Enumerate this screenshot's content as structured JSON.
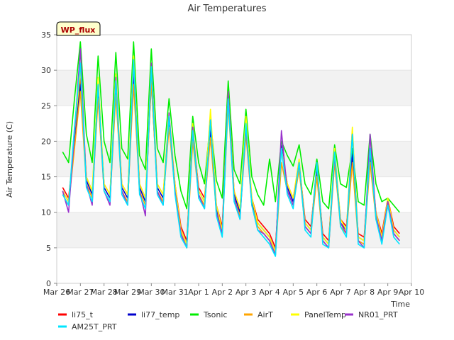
{
  "chart_data": {
    "type": "line",
    "title": "Air Temperatures",
    "xlabel": "Time",
    "ylabel": "Air Temperature (C)",
    "badge": "WP_flux",
    "ylim": [
      0,
      35
    ],
    "yticks": [
      0,
      5,
      10,
      15,
      20,
      25,
      30,
      35
    ],
    "xlim": [
      "Mar 26",
      "Apr 10"
    ],
    "xtick_labels": [
      "Mar 26",
      "Mar 27",
      "Mar 28",
      "Mar 29",
      "Mar 30",
      "Mar 31",
      "Apr 1",
      "Apr 2",
      "Apr 3",
      "Apr 4",
      "Apr 5",
      "Apr 6",
      "Apr 7",
      "Apr 8",
      "Apr 9",
      "Apr 10"
    ],
    "grid": "horizontal bands",
    "legend_position": "bottom",
    "x": [
      "Mar 26 06:00",
      "Mar 26 12:00",
      "Mar 26 18:00",
      "Mar 27 00:00",
      "Mar 27 06:00",
      "Mar 27 12:00",
      "Mar 27 18:00",
      "Mar 28 00:00",
      "Mar 28 06:00",
      "Mar 28 12:00",
      "Mar 28 18:00",
      "Mar 29 00:00",
      "Mar 29 06:00",
      "Mar 29 12:00",
      "Mar 29 18:00",
      "Mar 30 00:00",
      "Mar 30 06:00",
      "Mar 30 12:00",
      "Mar 30 18:00",
      "Mar 31 00:00",
      "Mar 31 06:00",
      "Mar 31 12:00",
      "Mar 31 18:00",
      "Apr 1 00:00",
      "Apr 1 06:00",
      "Apr 1 12:00",
      "Apr 1 18:00",
      "Apr 2 00:00",
      "Apr 2 06:00",
      "Apr 2 12:00",
      "Apr 2 18:00",
      "Apr 3 00:00",
      "Apr 3 06:00",
      "Apr 3 12:00",
      "Apr 3 18:00",
      "Apr 4 00:00",
      "Apr 4 06:00",
      "Apr 4 12:00",
      "Apr 4 18:00",
      "Apr 5 00:00",
      "Apr 5 06:00",
      "Apr 5 12:00",
      "Apr 5 18:00",
      "Apr 6 00:00",
      "Apr 6 06:00",
      "Apr 6 12:00",
      "Apr 6 18:00",
      "Apr 7 00:00",
      "Apr 7 06:00",
      "Apr 7 12:00",
      "Apr 7 18:00",
      "Apr 8 00:00",
      "Apr 8 06:00",
      "Apr 8 12:00",
      "Apr 8 18:00",
      "Apr 9 00:00",
      "Apr 9 06:00",
      "Apr 9 12:00"
    ],
    "series": [
      {
        "name": "li75_t",
        "color": "#ff0000",
        "values": [
          13.5,
          12.0,
          20.0,
          29.0,
          15.0,
          13.0,
          27.0,
          14.0,
          12.5,
          28.0,
          14.0,
          12.5,
          29.5,
          14.0,
          12.0,
          29.0,
          14.0,
          12.5,
          23.0,
          14.0,
          8.0,
          6.0,
          21.5,
          13.5,
          12.0,
          22.0,
          11.0,
          8.0,
          26.5,
          13.0,
          10.5,
          22.0,
          12.0,
          9.0,
          8.0,
          7.0,
          5.0,
          19.0,
          14.0,
          12.0,
          17.0,
          9.0,
          8.0,
          16.0,
          7.0,
          6.0,
          18.0,
          9.0,
          8.0,
          18.0,
          7.0,
          6.5,
          18.0,
          10.0,
          7.0,
          12.0,
          8.0,
          7.0
        ]
      },
      {
        "name": "li77_temp",
        "color": "#0000cc",
        "values": [
          13.0,
          11.5,
          20.0,
          28.0,
          14.5,
          12.5,
          27.5,
          13.5,
          12.0,
          27.5,
          13.5,
          12.0,
          29.0,
          13.5,
          11.5,
          28.5,
          13.5,
          12.0,
          23.0,
          13.5,
          7.5,
          5.5,
          21.5,
          13.0,
          11.5,
          21.5,
          10.5,
          7.5,
          26.0,
          12.5,
          10.0,
          21.5,
          11.5,
          8.5,
          7.5,
          6.5,
          4.5,
          19.5,
          13.5,
          11.5,
          16.5,
          8.5,
          7.5,
          16.5,
          6.5,
          5.5,
          17.5,
          8.5,
          7.5,
          18.5,
          6.5,
          6.0,
          18.5,
          9.5,
          6.5,
          11.5,
          7.5,
          6.5
        ]
      },
      {
        "name": "Tsonic",
        "color": "#00ee00",
        "values": [
          18.5,
          17.0,
          26.0,
          34.0,
          21.0,
          17.0,
          32.0,
          20.0,
          17.0,
          32.5,
          19.0,
          17.5,
          34.0,
          18.0,
          16.0,
          33.0,
          19.0,
          17.0,
          26.0,
          18.0,
          13.0,
          10.5,
          23.5,
          17.0,
          14.0,
          23.0,
          14.5,
          12.0,
          28.5,
          16.0,
          14.0,
          24.5,
          15.0,
          12.5,
          11.0,
          17.5,
          11.5,
          20.0,
          18.0,
          16.5,
          19.5,
          14.0,
          12.5,
          17.5,
          11.5,
          10.5,
          19.5,
          14.0,
          13.5,
          19.0,
          11.5,
          11.0,
          21.0,
          14.0,
          11.5,
          12.0,
          11.0,
          10.0
        ]
      },
      {
        "name": "AirT",
        "color": "#ffa500",
        "values": [
          12.5,
          11.0,
          19.0,
          27.0,
          14.0,
          12.0,
          26.0,
          13.0,
          11.5,
          26.5,
          13.0,
          11.5,
          28.0,
          13.0,
          11.0,
          28.5,
          13.0,
          11.5,
          22.0,
          13.0,
          7.0,
          5.0,
          20.0,
          12.5,
          11.0,
          20.5,
          10.0,
          7.0,
          25.0,
          12.0,
          9.5,
          21.0,
          11.0,
          8.0,
          7.0,
          6.0,
          4.0,
          17.0,
          13.0,
          11.0,
          16.0,
          8.0,
          7.0,
          15.0,
          6.0,
          5.0,
          17.0,
          8.0,
          7.0,
          17.0,
          6.0,
          5.5,
          17.0,
          9.0,
          6.0,
          11.0,
          7.0,
          6.0
        ]
      },
      {
        "name": "PanelTemp",
        "color": "#ffff00",
        "values": [
          13.0,
          11.5,
          21.0,
          30.0,
          15.0,
          13.0,
          29.0,
          14.0,
          12.5,
          29.5,
          14.0,
          12.5,
          32.0,
          14.0,
          12.0,
          31.0,
          14.0,
          12.5,
          24.0,
          14.0,
          7.5,
          5.5,
          22.5,
          13.0,
          11.5,
          24.5,
          11.0,
          7.5,
          27.0,
          13.0,
          10.5,
          23.5,
          12.0,
          8.5,
          7.5,
          6.5,
          4.5,
          19.0,
          14.0,
          12.0,
          17.5,
          8.5,
          7.5,
          17.0,
          6.5,
          5.5,
          19.0,
          9.0,
          7.5,
          22.0,
          6.5,
          6.0,
          19.0,
          10.0,
          6.5,
          12.0,
          7.5,
          6.5
        ]
      },
      {
        "name": "NR01_PRT",
        "color": "#9932cc",
        "values": [
          13.0,
          10.0,
          21.0,
          33.0,
          14.0,
          11.0,
          28.0,
          13.0,
          11.0,
          29.0,
          13.0,
          11.0,
          31.0,
          13.0,
          9.5,
          31.0,
          13.0,
          11.0,
          24.0,
          13.0,
          7.0,
          5.0,
          22.0,
          12.5,
          10.5,
          23.0,
          10.0,
          7.0,
          27.0,
          12.0,
          9.0,
          22.0,
          11.0,
          7.5,
          7.0,
          6.0,
          4.0,
          21.5,
          13.0,
          11.0,
          17.0,
          8.0,
          7.0,
          17.0,
          6.0,
          5.0,
          18.0,
          8.5,
          7.0,
          21.0,
          6.0,
          5.0,
          21.0,
          9.5,
          6.0,
          11.5,
          7.0,
          6.0
        ]
      },
      {
        "name": "AM25T_PRT",
        "color": "#00e5ff",
        "values": [
          12.5,
          11.0,
          22.0,
          31.0,
          13.5,
          11.5,
          28.0,
          13.0,
          11.5,
          28.5,
          12.5,
          11.0,
          31.5,
          12.5,
          10.5,
          30.5,
          12.5,
          11.0,
          23.5,
          12.5,
          6.5,
          5.0,
          21.5,
          12.0,
          10.5,
          23.0,
          9.5,
          6.5,
          26.0,
          11.5,
          9.0,
          22.5,
          11.0,
          7.5,
          6.5,
          5.5,
          3.8,
          19.0,
          12.5,
          10.5,
          17.0,
          7.5,
          6.5,
          17.0,
          5.5,
          5.0,
          18.5,
          8.0,
          6.5,
          21.0,
          5.5,
          5.0,
          19.0,
          9.0,
          5.5,
          11.0,
          6.5,
          5.5
        ]
      }
    ]
  }
}
